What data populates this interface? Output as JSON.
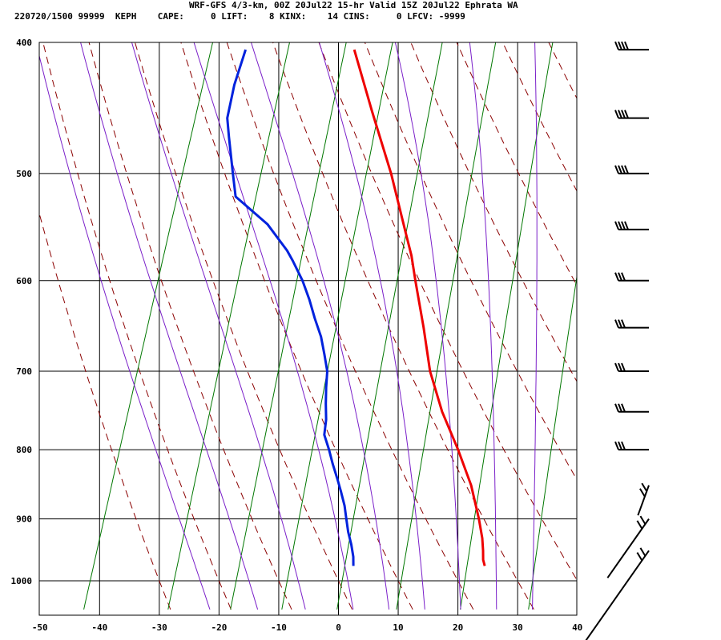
{
  "header": {
    "title": "WRF-GFS 4/3-km, 00Z 20Jul22 15-hr Valid 15Z 20Jul22 Ephrata WA",
    "info": "220720/1500 99999  KEPH    CAPE:     0 LIFT:    8 KINX:    14 CINS:     0 LFCV: -9999"
  },
  "colors": {
    "temperature": "#ee0000",
    "dewpoint": "#0022dd",
    "dry_adiabats": "#8b0000",
    "moist_adiabats": "#7a1fc9",
    "mixing_ratio": "#007700",
    "grid": "#000000"
  },
  "chart_data": {
    "type": "line",
    "subtype": "skew-T log-P sounding",
    "x_axis": {
      "ticks": [
        -50,
        -40,
        -30,
        -20,
        -10,
        0,
        10,
        20,
        30,
        40
      ],
      "range": [
        -50,
        40
      ]
    },
    "y_axis": {
      "ticks": [
        400,
        500,
        600,
        700,
        800,
        900,
        1000
      ],
      "range": [
        400,
        1045
      ],
      "log_scale": true,
      "inverted": true
    },
    "grid": true,
    "series": [
      {
        "kind": "temperature",
        "points": [
          [
            975,
            23.7
          ],
          [
            965,
            23.1
          ],
          [
            950,
            22.6
          ],
          [
            930,
            21.8
          ],
          [
            900,
            20.2
          ],
          [
            850,
            17.1
          ],
          [
            800,
            13.0
          ],
          [
            750,
            8.3
          ],
          [
            700,
            4.1
          ],
          [
            650,
            0.7
          ],
          [
            600,
            -3.2
          ],
          [
            575,
            -5.2
          ],
          [
            550,
            -7.7
          ],
          [
            500,
            -13.0
          ],
          [
            450,
            -19.5
          ],
          [
            405,
            -25.8
          ]
        ]
      },
      {
        "kind": "dewpoint",
        "points": [
          [
            975,
            1.7
          ],
          [
            960,
            1.2
          ],
          [
            940,
            0.2
          ],
          [
            920,
            -1.0
          ],
          [
            900,
            -2.0
          ],
          [
            880,
            -3.0
          ],
          [
            860,
            -4.3
          ],
          [
            840,
            -5.7
          ],
          [
            820,
            -7.2
          ],
          [
            800,
            -8.6
          ],
          [
            780,
            -10.2
          ],
          [
            760,
            -10.7
          ],
          [
            740,
            -11.6
          ],
          [
            720,
            -12.4
          ],
          [
            700,
            -13.1
          ],
          [
            680,
            -14.5
          ],
          [
            660,
            -16.0
          ],
          [
            640,
            -18.0
          ],
          [
            620,
            -19.9
          ],
          [
            600,
            -22.1
          ],
          [
            580,
            -24.8
          ],
          [
            570,
            -26.3
          ],
          [
            545,
            -31.0
          ],
          [
            520,
            -37.8
          ],
          [
            500,
            -39.5
          ],
          [
            470,
            -42.1
          ],
          [
            455,
            -43.4
          ],
          [
            430,
            -44.0
          ],
          [
            405,
            -44.0
          ]
        ]
      }
    ],
    "wind_barbs": [
      {
        "p": 405,
        "barbs": "50+"
      },
      {
        "p": 455,
        "barbs": "50+"
      },
      {
        "p": 500,
        "barbs": "45-50"
      },
      {
        "p": 550,
        "barbs": "40-45"
      },
      {
        "p": 600,
        "barbs": "30-35"
      },
      {
        "p": 650,
        "barbs": "25-30"
      },
      {
        "p": 700,
        "barbs": "25"
      },
      {
        "p": 750,
        "barbs": "25"
      },
      {
        "p": 800,
        "barbs": "20"
      },
      {
        "p": 850,
        "barbs": "15"
      },
      {
        "p": 900,
        "barbs": "10-15"
      },
      {
        "p": 950,
        "barbs": "10"
      }
    ]
  }
}
